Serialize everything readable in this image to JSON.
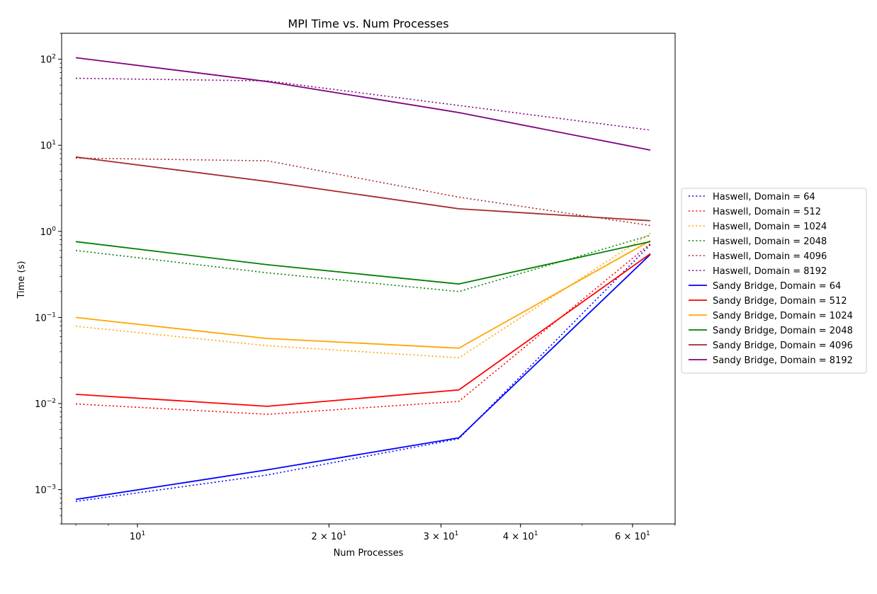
{
  "chart_data": {
    "type": "line",
    "title": "MPI Time vs. Num Processes",
    "xlabel": "Num Processes",
    "ylabel": "Time (s)",
    "xscale": "log",
    "yscale": "log",
    "xlim": [
      7.6,
      70
    ],
    "ylim": [
      0.0004,
      200
    ],
    "x": [
      8,
      16,
      32,
      64
    ],
    "x_ticks": [
      {
        "value": 10,
        "base": "10",
        "exp": "1",
        "coef": ""
      },
      {
        "value": 20,
        "base": "10",
        "exp": "1",
        "coef": "2 × "
      },
      {
        "value": 30,
        "base": "10",
        "exp": "1",
        "coef": "3 × "
      },
      {
        "value": 40,
        "base": "10",
        "exp": "1",
        "coef": "4 × "
      },
      {
        "value": 60,
        "base": "10",
        "exp": "1",
        "coef": "6 × "
      }
    ],
    "y_ticks": [
      {
        "value": 0.001,
        "base": "10",
        "exp": "−3"
      },
      {
        "value": 0.01,
        "base": "10",
        "exp": "−2"
      },
      {
        "value": 0.1,
        "base": "10",
        "exp": "−1"
      },
      {
        "value": 1,
        "base": "10",
        "exp": "0"
      },
      {
        "value": 10,
        "base": "10",
        "exp": "1"
      },
      {
        "value": 100,
        "base": "10",
        "exp": "2"
      }
    ],
    "grid": false,
    "legend_position": "outside-right",
    "series": [
      {
        "name": "Haswell, Domain = 64",
        "color": "#0000ff",
        "style": "dotted",
        "values": [
          0.00073,
          0.00148,
          0.0039,
          0.7
        ]
      },
      {
        "name": "Haswell, Domain = 512",
        "color": "#ff0000",
        "style": "dotted",
        "values": [
          0.0099,
          0.0075,
          0.0106,
          0.72
        ]
      },
      {
        "name": "Haswell, Domain = 1024",
        "color": "#ffa500",
        "style": "dotted",
        "values": [
          0.079,
          0.047,
          0.034,
          0.95
        ]
      },
      {
        "name": "Haswell, Domain = 2048",
        "color": "#008000",
        "style": "dotted",
        "values": [
          0.6,
          0.33,
          0.2,
          0.9
        ]
      },
      {
        "name": "Haswell, Domain = 4096",
        "color": "#a52a2a",
        "style": "dotted",
        "values": [
          7.1,
          6.6,
          2.5,
          1.17
        ]
      },
      {
        "name": "Haswell, Domain = 8192",
        "color": "#800080",
        "style": "dotted",
        "values": [
          60,
          56,
          29,
          15
        ]
      },
      {
        "name": "Sandy Bridge, Domain = 64",
        "color": "#0000ff",
        "style": "solid",
        "values": [
          0.00077,
          0.0017,
          0.004,
          0.54
        ]
      },
      {
        "name": "Sandy Bridge, Domain = 512",
        "color": "#ff0000",
        "style": "solid",
        "values": [
          0.0128,
          0.0093,
          0.0144,
          0.55
        ]
      },
      {
        "name": "Sandy Bridge, Domain = 1024",
        "color": "#ffa500",
        "style": "solid",
        "values": [
          0.1,
          0.057,
          0.044,
          0.78
        ]
      },
      {
        "name": "Sandy Bridge, Domain = 2048",
        "color": "#008000",
        "style": "solid",
        "values": [
          0.76,
          0.41,
          0.245,
          0.76
        ]
      },
      {
        "name": "Sandy Bridge, Domain = 4096",
        "color": "#a52a2a",
        "style": "solid",
        "values": [
          7.3,
          3.8,
          1.83,
          1.33
        ]
      },
      {
        "name": "Sandy Bridge, Domain = 8192",
        "color": "#800080",
        "style": "solid",
        "values": [
          104,
          55,
          24,
          8.8
        ]
      }
    ]
  }
}
